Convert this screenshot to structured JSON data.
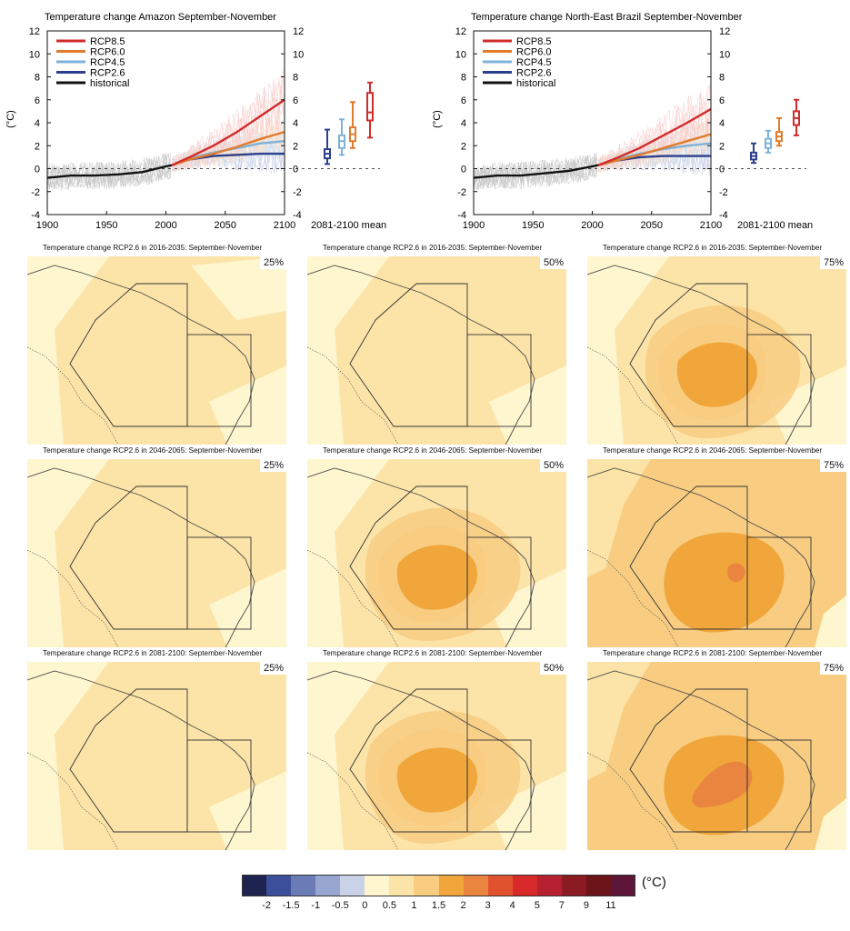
{
  "chart_data": [
    {
      "type": "line",
      "title": "Temperature change Amazon September-November",
      "ylabel": "(°C)",
      "xlim": [
        1900,
        2100
      ],
      "ylim": [
        -4,
        12
      ],
      "xticks": [
        "1900",
        "1950",
        "2000",
        "2050",
        "2100"
      ],
      "yticks": [
        "-4",
        "-2",
        "0",
        "2",
        "4",
        "6",
        "8",
        "10",
        "12"
      ],
      "legend": [
        "RCP8.5",
        "RCP6.0",
        "RCP4.5",
        "RCP2.6",
        "historical"
      ],
      "legend_position": "top-left",
      "boxes_label": "2081-2100 mean",
      "series": [
        {
          "name": "historical",
          "color": "#111111",
          "x": [
            1900,
            1920,
            1940,
            1960,
            1980,
            2000,
            2005
          ],
          "y": [
            -0.8,
            -0.6,
            -0.6,
            -0.5,
            -0.3,
            0.2,
            0.3
          ]
        },
        {
          "name": "RCP2.6",
          "color": "#2b3f8c",
          "x": [
            2005,
            2020,
            2040,
            2060,
            2080,
            2100
          ],
          "y": [
            0.3,
            0.8,
            1.1,
            1.2,
            1.3,
            1.3
          ]
        },
        {
          "name": "RCP4.5",
          "color": "#7fb2d8",
          "x": [
            2005,
            2020,
            2040,
            2060,
            2080,
            2100
          ],
          "y": [
            0.3,
            0.9,
            1.4,
            1.8,
            2.2,
            2.4
          ]
        },
        {
          "name": "RCP6.0",
          "color": "#e27b2c",
          "x": [
            2005,
            2020,
            2040,
            2060,
            2080,
            2100
          ],
          "y": [
            0.3,
            0.8,
            1.3,
            1.9,
            2.6,
            3.2
          ]
        },
        {
          "name": "RCP8.5",
          "color": "#d02c2c",
          "x": [
            2005,
            2020,
            2040,
            2060,
            2080,
            2100
          ],
          "y": [
            0.3,
            1.0,
            2.0,
            3.2,
            4.6,
            6.0
          ]
        }
      ],
      "boxes": [
        {
          "name": "RCP2.6",
          "color": "#2b3f8c",
          "whisker_low": 0.4,
          "q1": 0.9,
          "median": 1.3,
          "q3": 1.7,
          "whisker_high": 3.4
        },
        {
          "name": "RCP4.5",
          "color": "#7fb2d8",
          "whisker_low": 1.2,
          "q1": 1.8,
          "median": 2.4,
          "q3": 2.9,
          "whisker_high": 4.3
        },
        {
          "name": "RCP6.0",
          "color": "#e27b2c",
          "whisker_low": 1.8,
          "q1": 2.4,
          "median": 3.0,
          "q3": 3.6,
          "whisker_high": 5.8
        },
        {
          "name": "RCP8.5",
          "color": "#d02c2c",
          "whisker_low": 2.7,
          "q1": 4.2,
          "median": 4.9,
          "q3": 6.6,
          "whisker_high": 7.5
        }
      ]
    },
    {
      "type": "line",
      "title": "Temperature change North-East Brazil September-November",
      "ylabel": "(°C)",
      "xlim": [
        1900,
        2100
      ],
      "ylim": [
        -4,
        12
      ],
      "xticks": [
        "1900",
        "1950",
        "2000",
        "2050",
        "2100"
      ],
      "yticks": [
        "-4",
        "-2",
        "0",
        "2",
        "4",
        "6",
        "8",
        "10",
        "12"
      ],
      "legend": [
        "RCP8.5",
        "RCP6.0",
        "RCP4.5",
        "RCP2.6",
        "historical"
      ],
      "legend_position": "top-left",
      "boxes_label": "2081-2100 mean",
      "series": [
        {
          "name": "historical",
          "color": "#111111",
          "x": [
            1900,
            1920,
            1940,
            1960,
            1980,
            2000,
            2005
          ],
          "y": [
            -0.8,
            -0.6,
            -0.6,
            -0.4,
            -0.2,
            0.2,
            0.3
          ]
        },
        {
          "name": "RCP2.6",
          "color": "#2b3f8c",
          "x": [
            2005,
            2020,
            2040,
            2060,
            2080,
            2100
          ],
          "y": [
            0.3,
            0.7,
            1.0,
            1.1,
            1.1,
            1.1
          ]
        },
        {
          "name": "RCP4.5",
          "color": "#7fb2d8",
          "x": [
            2005,
            2020,
            2040,
            2060,
            2080,
            2100
          ],
          "y": [
            0.3,
            0.8,
            1.3,
            1.7,
            2.0,
            2.2
          ]
        },
        {
          "name": "RCP6.0",
          "color": "#e27b2c",
          "x": [
            2005,
            2020,
            2040,
            2060,
            2080,
            2100
          ],
          "y": [
            0.3,
            0.7,
            1.2,
            1.8,
            2.4,
            3.0
          ]
        },
        {
          "name": "RCP8.5",
          "color": "#d02c2c",
          "x": [
            2005,
            2020,
            2040,
            2060,
            2080,
            2100
          ],
          "y": [
            0.3,
            0.9,
            1.8,
            2.9,
            4.0,
            5.2
          ]
        }
      ],
      "boxes": [
        {
          "name": "RCP2.6",
          "color": "#2b3f8c",
          "whisker_low": 0.5,
          "q1": 0.8,
          "median": 1.1,
          "q3": 1.4,
          "whisker_high": 2.2
        },
        {
          "name": "RCP4.5",
          "color": "#7fb2d8",
          "whisker_low": 1.4,
          "q1": 1.8,
          "median": 2.2,
          "q3": 2.6,
          "whisker_high": 3.3
        },
        {
          "name": "RCP6.0",
          "color": "#e27b2c",
          "whisker_low": 2.0,
          "q1": 2.4,
          "median": 2.8,
          "q3": 3.2,
          "whisker_high": 4.4
        },
        {
          "name": "RCP8.5",
          "color": "#d02c2c",
          "whisker_low": 2.9,
          "q1": 3.8,
          "median": 4.4,
          "q3": 5.0,
          "whisker_high": 6.0
        }
      ]
    }
  ],
  "maps": [
    {
      "title": "Temperature change RCP2.6 in 2016-2035: September-November",
      "percentile": "25%",
      "level": 0
    },
    {
      "title": "Temperature change RCP2.6 in 2016-2035: September-November",
      "percentile": "50%",
      "level": 1
    },
    {
      "title": "Temperature change RCP2.6 in 2016-2035: September-November",
      "percentile": "75%",
      "level": 2
    },
    {
      "title": "Temperature change RCP2.6 in 2046-2065: September-November",
      "percentile": "25%",
      "level": 1
    },
    {
      "title": "Temperature change RCP2.6 in 2046-2065: September-November",
      "percentile": "50%",
      "level": 2
    },
    {
      "title": "Temperature change RCP2.6 in 2046-2065: September-November",
      "percentile": "75%",
      "level": 3
    },
    {
      "title": "Temperature change RCP2.6 in 2081-2100: September-November",
      "percentile": "25%",
      "level": 1
    },
    {
      "title": "Temperature change RCP2.6 in 2081-2100: September-November",
      "percentile": "50%",
      "level": 2
    },
    {
      "title": "Temperature change RCP2.6 in 2081-2100: September-November",
      "percentile": "75%",
      "level": 4
    }
  ],
  "colorbar": {
    "unit": "(°C)",
    "ticks": [
      "-2",
      "-1.5",
      "-1",
      "-0.5",
      "0",
      "0.5",
      "1",
      "1.5",
      "2",
      "3",
      "4",
      "5",
      "7",
      "9",
      "11"
    ],
    "colors": [
      "#1f2350",
      "#3b4f9b",
      "#6a7bb6",
      "#98a6cf",
      "#c9d2e6",
      "#fef6cf",
      "#fce4a8",
      "#f8cd82",
      "#f0a63a",
      "#ea8540",
      "#e0522e",
      "#d82a2a",
      "#b72030",
      "#8b1a22",
      "#6b1419",
      "#5e1638"
    ]
  }
}
